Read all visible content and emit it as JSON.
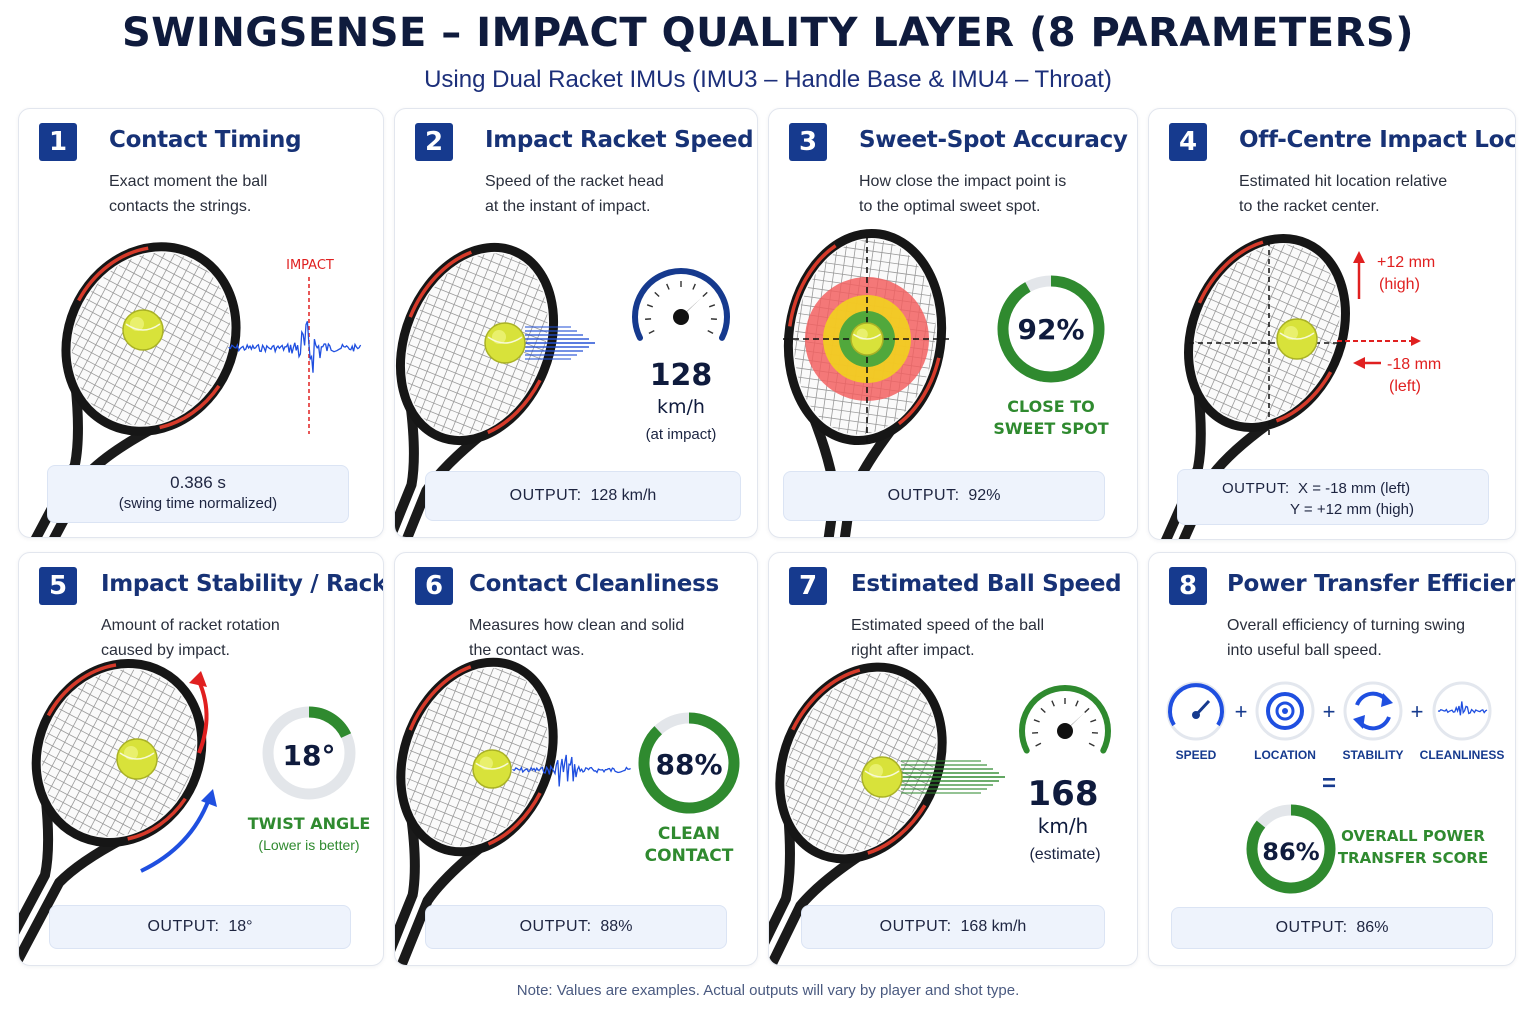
{
  "header": {
    "title": "SWINGSENSE – IMPACT QUALITY LAYER (8 PARAMETERS)",
    "subtitle": "Using Dual Racket IMUs (IMU3 – Handle Base & IMU4 – Throat)"
  },
  "colors": {
    "navy": "#163a8e",
    "green": "#2f8a2f",
    "red": "#e02020",
    "blue": "#1f4fe0",
    "ball": "#d8e23a"
  },
  "cards": [
    {
      "num": "1",
      "title": "Contact Timing",
      "desc1": "Exact moment the ball",
      "desc2": "contacts the strings.",
      "impact_label": "IMPACT",
      "output_line1": "0.386 s",
      "output_line2": "(swing time normalized)",
      "icon": "waveform-icon"
    },
    {
      "num": "2",
      "title": "Impact Racket Speed",
      "desc1": "Speed of the racket head",
      "desc2": "at the instant of impact.",
      "value": "128",
      "unit": "km/h",
      "note": "(at impact)",
      "output_label": "OUTPUT:",
      "output_value": "128 km/h",
      "icon": "speedometer-icon"
    },
    {
      "num": "3",
      "title": "Sweet-Spot Accuracy",
      "desc1": "How close the impact point is",
      "desc2": "to the optimal sweet spot.",
      "gauge_value": "92%",
      "gauge_fraction": 0.92,
      "caption1": "CLOSE TO",
      "caption2": "SWEET SPOT",
      "output_label": "OUTPUT:",
      "output_value": "92%",
      "icon": "target-icon"
    },
    {
      "num": "4",
      "title": "Off-Centre Impact Location",
      "desc1": "Estimated hit location relative",
      "desc2": "to the racket center.",
      "y_offset": "+12 mm",
      "y_dir": "(high)",
      "x_offset": "-18 mm",
      "x_dir": "(left)",
      "output_label": "OUTPUT:",
      "output_line1": "X =  -18 mm (left)",
      "output_line2": "Y = +12 mm (high)",
      "icon": "crosshair-icon"
    },
    {
      "num": "5",
      "title": "Impact Stability / Racket Twist",
      "desc1": "Amount of racket rotation",
      "desc2": "caused by impact.",
      "gauge_value": "18°",
      "gauge_fraction": 0.18,
      "caption1": "TWIST ANGLE",
      "caption2": "(Lower is better)",
      "output_label": "OUTPUT:",
      "output_value": "18°",
      "icon": "rotation-arrows-icon"
    },
    {
      "num": "6",
      "title": "Contact Cleanliness",
      "desc1": "Measures how clean and solid",
      "desc2": "the contact was.",
      "gauge_value": "88%",
      "gauge_fraction": 0.88,
      "caption1": "CLEAN",
      "caption2": "CONTACT",
      "output_label": "OUTPUT:",
      "output_value": "88%",
      "icon": "waveform-icon"
    },
    {
      "num": "7",
      "title": "Estimated Ball Speed",
      "desc1": "Estimated speed of the ball",
      "desc2": "right after impact.",
      "value": "168",
      "unit": "km/h",
      "note": "(estimate)",
      "output_label": "OUTPUT:",
      "output_value": "168 km/h",
      "icon": "speedometer-icon"
    },
    {
      "num": "8",
      "title": "Power Transfer Efficiency",
      "desc1": "Overall efficiency of turning swing",
      "desc2": "into useful ball speed.",
      "components": [
        "SPEED",
        "LOCATION",
        "STABILITY",
        "CLEANLINESS"
      ],
      "plus": "+",
      "equals": "=",
      "gauge_value": "86%",
      "gauge_fraction": 0.86,
      "caption1": "OVERALL POWER",
      "caption2": "TRANSFER SCORE",
      "output_label": "OUTPUT:",
      "output_value": "86%",
      "icon": "gauge-icon"
    }
  ],
  "footer": {
    "note": "Note: Values are examples. Actual outputs will vary by player and shot type."
  }
}
